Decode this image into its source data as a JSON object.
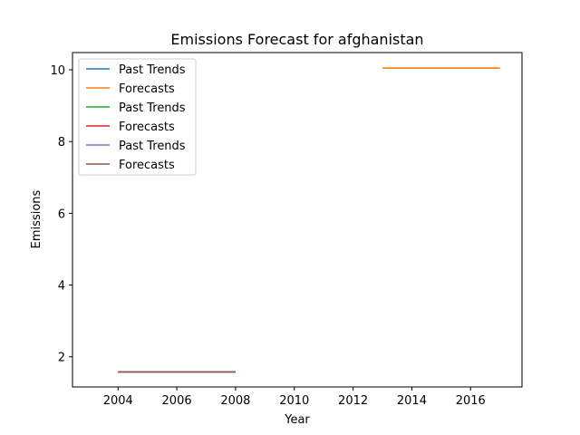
{
  "chart_data": {
    "type": "line",
    "title": "Emissions Forecast for afghanistan",
    "xlabel": "Year",
    "ylabel": "Emissions",
    "xlim": [
      2002.45,
      2017.75
    ],
    "ylim": [
      1.16,
      10.48
    ],
    "x_ticks": [
      2004,
      2006,
      2008,
      2010,
      2012,
      2014,
      2016
    ],
    "y_ticks": [
      2,
      4,
      6,
      8,
      10
    ],
    "grid": false,
    "legend_position": "top-left",
    "series": [
      {
        "name": "Past Trends",
        "color": "#1f77b4",
        "x": [
          2004,
          2008
        ],
        "y": [
          1.58,
          1.58
        ]
      },
      {
        "name": "Forecasts",
        "color": "#ff7f0e",
        "x": [
          2013,
          2017
        ],
        "y": [
          10.05,
          10.05
        ]
      },
      {
        "name": "Past Trends",
        "color": "#2ca02c",
        "x": [
          2004,
          2008
        ],
        "y": [
          1.58,
          1.58
        ]
      },
      {
        "name": "Forecasts",
        "color": "#d62728",
        "x": [
          2004,
          2008
        ],
        "y": [
          1.58,
          1.58
        ]
      },
      {
        "name": "Past Trends",
        "color": "#9467bd",
        "x": [
          2004,
          2008
        ],
        "y": [
          1.58,
          1.58
        ]
      },
      {
        "name": "Forecasts",
        "color": "#8c564b",
        "x": [
          2004,
          2008
        ],
        "y": [
          1.58,
          1.58
        ]
      }
    ]
  }
}
